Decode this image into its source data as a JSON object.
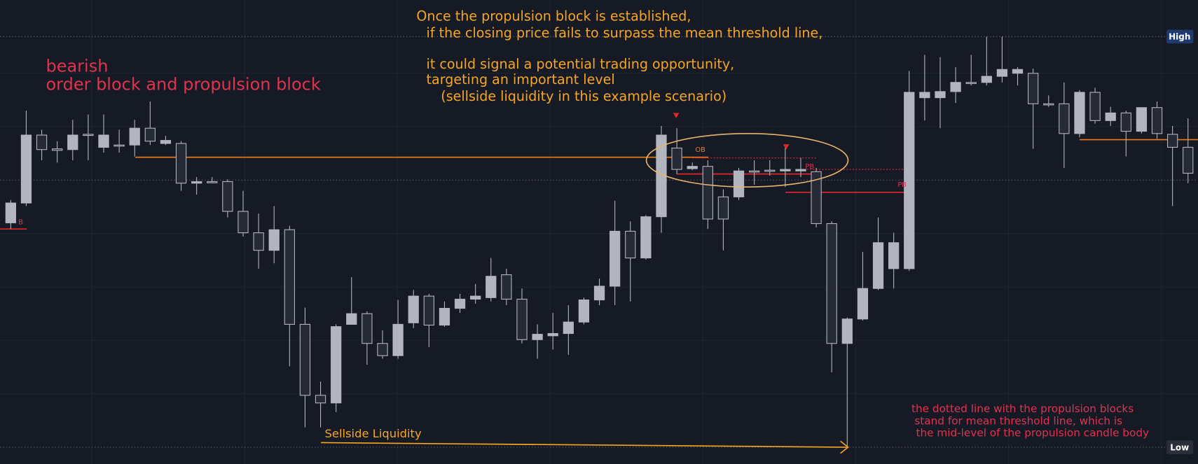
{
  "chart_data": {
    "type": "candlestick",
    "ylim": [
      0,
      60.8
    ],
    "colors": {
      "up": "#b2b5be",
      "down": "#262a36",
      "wick": "#b2b5be"
    },
    "title": "bearish",
    "subtitle": "order block and propulsion block",
    "notes": [
      "Once the propulsion block is established,",
      "if the closing price fails to surpass the mean threshold line,",
      "it could signal a potential trading opportunity,",
      "targeting an important level",
      "(sellside liquidity in this example scenario)"
    ],
    "labels": [
      "High",
      "Low",
      "Sellside Liquidity",
      "OB",
      "PB",
      "PB",
      "B"
    ],
    "footnote": [
      "the dotted line with the propulsion blocks",
      "stand for mean threshold line, which is",
      "the mid-level of the propulsion candle body"
    ],
    "open": [
      31.6,
      34.2,
      43.1,
      41.3,
      41.2,
      43.2,
      41.5,
      41.8,
      41.8,
      44.0,
      42.0,
      42.0,
      36.8,
      37.0,
      37.0,
      33.1,
      30.3,
      28.0,
      30.7,
      18.3,
      9.0,
      8.0,
      18.3,
      19.7,
      15.8,
      14.2,
      18.5,
      22.0,
      18.2,
      20.4,
      21.6,
      21.8,
      24.8,
      21.6,
      16.3,
      16.8,
      17.1,
      18.6,
      21.5,
      23.3,
      30.5,
      27.0,
      32.4,
      41.4,
      38.7,
      39.0,
      35.0,
      35.0,
      38.4,
      38.5,
      38.4,
      38.4,
      38.3,
      31.5,
      15.8,
      19.0,
      23.0,
      25.6,
      25.6,
      48.0,
      48.0,
      48.8,
      50.0,
      50.0,
      50.8,
      51.2,
      51.2,
      47.2,
      47.2,
      43.3,
      48.7,
      45.0,
      46.0,
      43.6,
      46.7,
      43.2,
      41.5
    ],
    "high": [
      34.6,
      46.3,
      43.8,
      42.3,
      45.1,
      45.8,
      45.8,
      43.8,
      45.1,
      47.5,
      43.0,
      42.3,
      37.6,
      37.6,
      37.3,
      35.8,
      32.8,
      33.8,
      31.2,
      20.5,
      10.8,
      18.3,
      24.5,
      20.0,
      17.5,
      21.5,
      22.8,
      22.3,
      21.3,
      22.3,
      23.6,
      27.0,
      25.6,
      23.0,
      18.3,
      19.8,
      20.8,
      21.8,
      24.3,
      34.5,
      31.8,
      32.6,
      44.3,
      44.0,
      39.5,
      39.8,
      36.0,
      38.8,
      39.8,
      39.8,
      41.8,
      40.1,
      38.8,
      31.8,
      19.2,
      27.8,
      32.3,
      30.3,
      51.5,
      53.6,
      53.3,
      52.0,
      53.6,
      56.0,
      56.0,
      52.0,
      51.8,
      48.3,
      50.0,
      49.0,
      49.3,
      46.8,
      46.3,
      46.7,
      47.5,
      44.3,
      45.3
    ],
    "low": [
      30.8,
      33.8,
      39.8,
      39.5,
      39.8,
      39.8,
      40.8,
      40.8,
      40.3,
      41.8,
      41.8,
      35.8,
      35.3,
      36.8,
      32.3,
      29.8,
      25.6,
      26.3,
      12.8,
      4.8,
      4.8,
      6.8,
      18.3,
      13.0,
      13.8,
      13.8,
      17.8,
      15.3,
      18.0,
      19.8,
      21.0,
      21.3,
      20.8,
      15.8,
      13.8,
      15.0,
      14.3,
      18.3,
      20.8,
      20.8,
      21.3,
      26.8,
      30.3,
      38.0,
      38.5,
      30.8,
      28.0,
      34.6,
      36.6,
      37.8,
      36.3,
      37.6,
      31.0,
      12.0,
      2.2,
      18.8,
      22.8,
      23.0,
      25.3,
      45.0,
      44.0,
      47.3,
      49.6,
      49.6,
      50.0,
      49.6,
      41.3,
      46.8,
      38.8,
      42.8,
      44.6,
      44.3,
      40.3,
      43.3,
      42.6,
      33.8,
      36.8
    ],
    "close": [
      34.2,
      43.1,
      41.2,
      41.1,
      43.1,
      43.1,
      43.1,
      41.7,
      44.0,
      42.3,
      42.4,
      36.8,
      37.0,
      36.9,
      33.1,
      30.3,
      28.0,
      30.7,
      18.3,
      9.0,
      8.0,
      18.0,
      19.7,
      15.8,
      14.2,
      18.3,
      22.0,
      18.2,
      20.4,
      21.6,
      22.0,
      24.6,
      21.6,
      16.3,
      17.0,
      17.1,
      18.6,
      21.5,
      23.3,
      30.5,
      27.0,
      32.4,
      43.1,
      38.6,
      39.0,
      32.1,
      32.1,
      38.4,
      38.3,
      38.4,
      38.6,
      38.6,
      31.5,
      15.8,
      19.0,
      23.0,
      29.0,
      29.0,
      48.7,
      48.7,
      48.8,
      50.0,
      49.9,
      50.8,
      51.7,
      51.7,
      47.2,
      47.1,
      43.3,
      48.7,
      45.0,
      46.0,
      43.6,
      46.7,
      43.3,
      41.5,
      38.1
    ]
  }
}
